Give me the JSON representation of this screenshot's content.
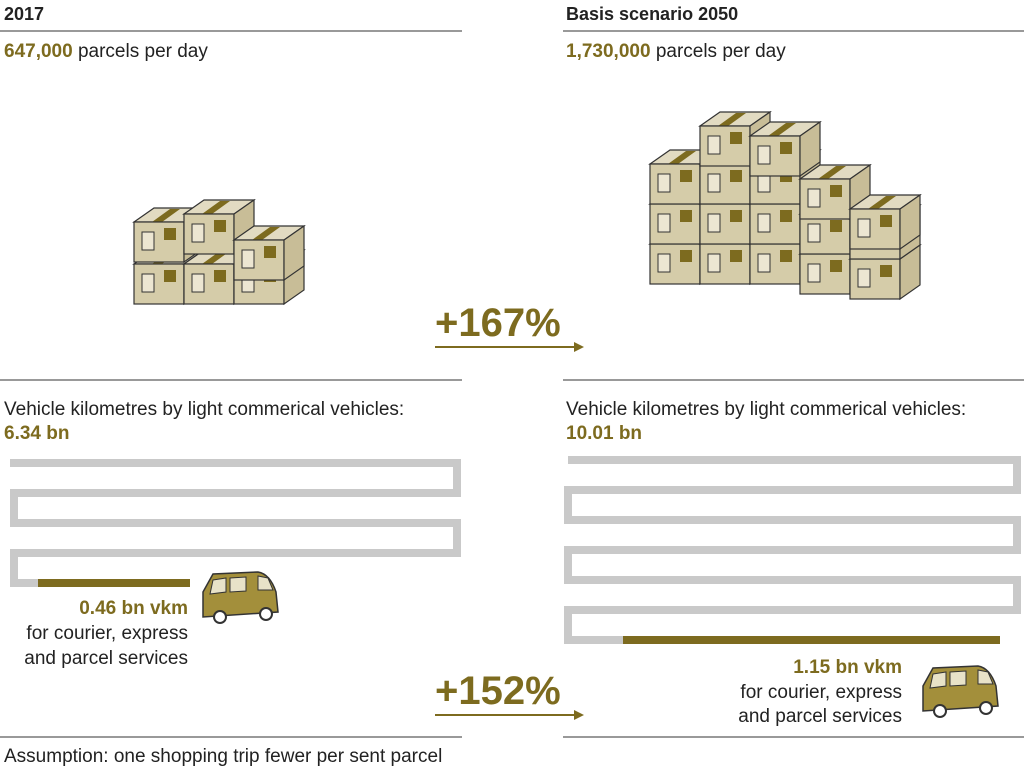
{
  "left": {
    "title": "2017",
    "count": "647,000",
    "count_unit": "parcels per day",
    "vkm_label": "Vehicle kilometres by light commerical vehicles:",
    "vkm_total": "6.34 bn",
    "cep_value": "0.46 bn vkm",
    "cep_desc": [
      "for courier, express",
      "and parcel services"
    ]
  },
  "right": {
    "title": "Basis scenario 2050",
    "count": "1,730,000",
    "count_unit": "parcels per day",
    "vkm_label": "Vehicle kilometres by light commerical vehicles:",
    "vkm_total": "10.01 bn",
    "cep_value": "1.15 bn vkm",
    "cep_desc": [
      "for courier, express",
      "and parcel services"
    ]
  },
  "changes": {
    "parcels": "+167%",
    "vkm": "+152%"
  },
  "footnote": "Assumption: one shopping trip fewer per sent parcel"
}
